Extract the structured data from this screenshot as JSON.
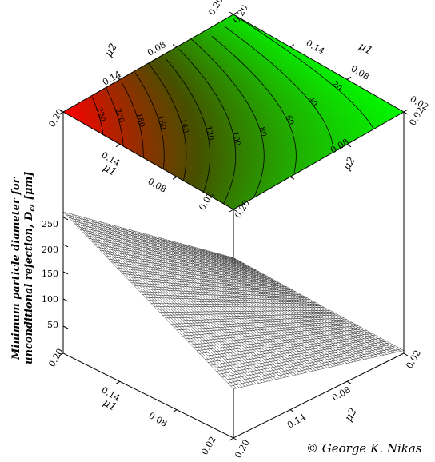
{
  "chart_data": {
    "type": "surface_3d_with_contour",
    "x_label": "μ1",
    "y_label": "μ2",
    "z_label_line1": "Minimum particle diameter for",
    "z_label_line2": "unconditional rejection, D",
    "z_label_sub": "c",
    "z_label_unit": ", [μm]",
    "x_range": [
      0.02,
      0.2
    ],
    "y_range": [
      0.02,
      0.2
    ],
    "z_range": [
      0,
      250
    ],
    "x_ticks": [
      "0.02",
      "0.08",
      "0.14",
      "0.20"
    ],
    "y_ticks": [
      "0.02",
      "0.08",
      "0.14",
      "0.20"
    ],
    "z_ticks": [
      "50",
      "100",
      "150",
      "200",
      "250"
    ],
    "corner_values": [
      {
        "mu1": 0.2,
        "mu2": 0.2,
        "D": 260
      },
      {
        "mu1": 0.2,
        "mu2": 0.02,
        "D": 20
      },
      {
        "mu1": 0.02,
        "mu2": 0.2,
        "D": 90
      },
      {
        "mu1": 0.02,
        "mu2": 0.02,
        "D": 5
      }
    ],
    "contour_levels": [
      20,
      40,
      60,
      80,
      100,
      120,
      140,
      160,
      180,
      200,
      220
    ],
    "colormap": {
      "low": "#00ff00",
      "high": "#ff0000"
    },
    "grid": "wireframe",
    "copyright": "© George K. Nikas"
  }
}
